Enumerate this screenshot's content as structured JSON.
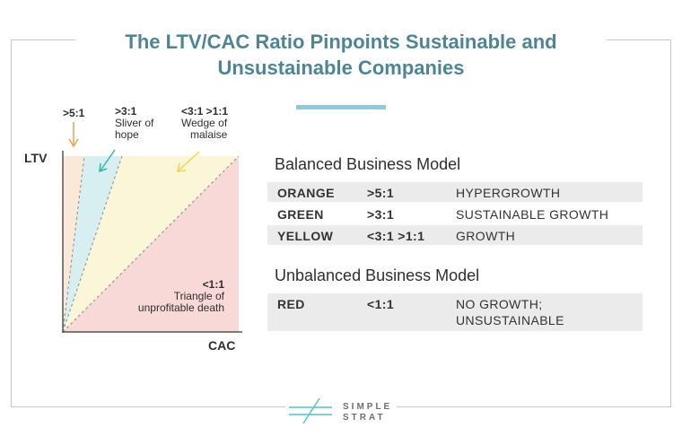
{
  "title_line1": "The LTV/CAC Ratio Pinpoints Sustainable and",
  "title_line2": "Unsustainable Companies",
  "diagram": {
    "ylabel": "LTV",
    "xlabel": "CAC",
    "regions": [
      {
        "ratio": ">5:1",
        "description": "",
        "color": "#fbe9d8"
      },
      {
        "ratio": ">3:1",
        "description_line1": "Sliver of",
        "description_line2": "hope",
        "color": "#d8eff1"
      },
      {
        "ratio": "<3:1 >1:1",
        "description_line1": "Wedge of",
        "description_line2": "malaise",
        "color": "#fbf6d8"
      },
      {
        "ratio": "<1:1",
        "description_line1": "Triangle of",
        "description_line2": "unprofitable death",
        "color": "#f9d8d8"
      }
    ],
    "arrow_colors": {
      "orange": "#f0a347",
      "green": "#33b8a7",
      "yellow": "#f2d54a"
    }
  },
  "balanced": {
    "heading": "Balanced Business Model",
    "rows": [
      {
        "color": "ORANGE",
        "ratio": ">5:1",
        "meaning": "HYPERGROWTH"
      },
      {
        "color": "GREEN",
        "ratio": ">3:1",
        "meaning": "SUSTAINABLE GROWTH"
      },
      {
        "color": "YELLOW",
        "ratio": "<3:1 >1:1",
        "meaning": "GROWTH"
      }
    ]
  },
  "unbalanced": {
    "heading": "Unbalanced Business Model",
    "rows": [
      {
        "color": "RED",
        "ratio": "<1:1",
        "meaning_line1": "NO GROWTH;",
        "meaning_line2": "UNSUSTAINABLE"
      }
    ]
  },
  "logo": {
    "line1": "SIMPLE",
    "line2": "STRAT",
    "color": "#5bbfc9"
  }
}
